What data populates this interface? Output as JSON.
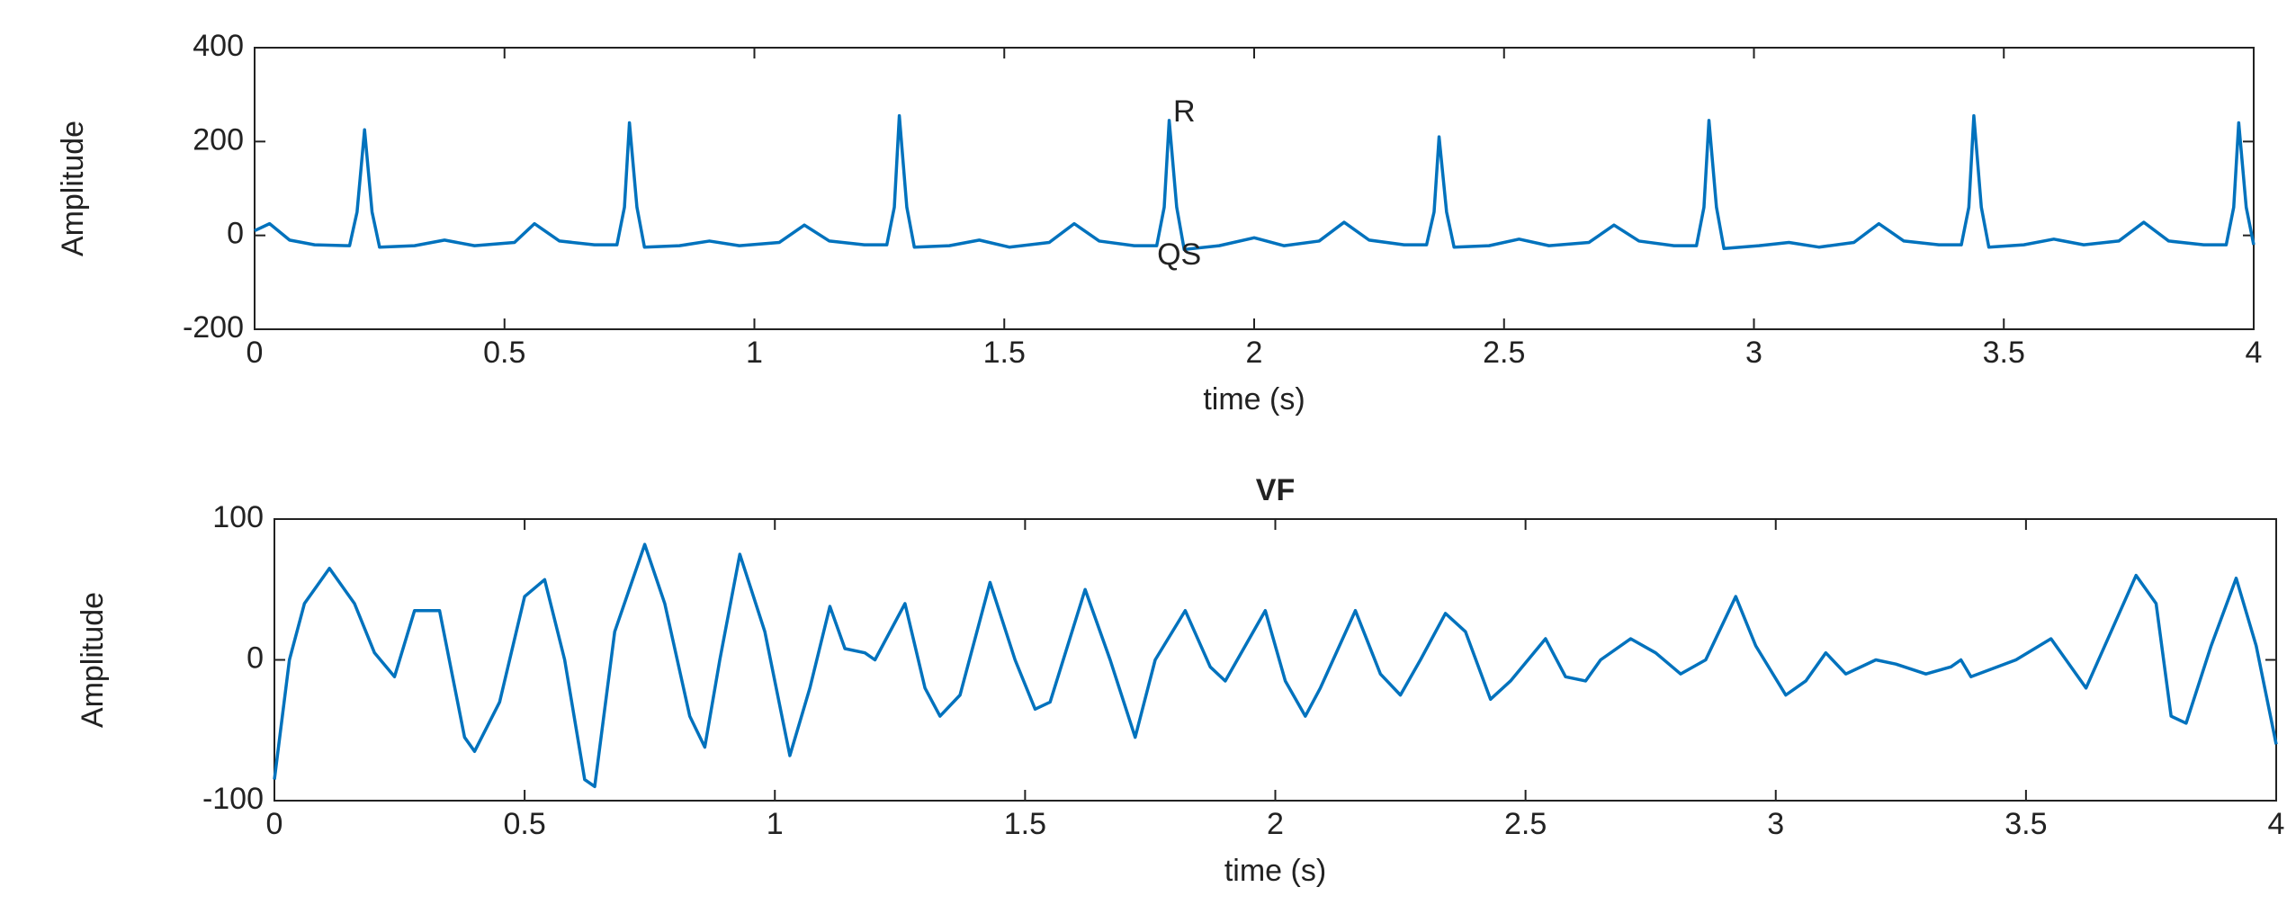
{
  "chart_data": [
    {
      "type": "line",
      "ylabel": "Amplitude",
      "xlabel": "time (s)",
      "xlim": [
        0,
        4
      ],
      "ylim": [
        -200,
        400
      ],
      "xticks": [
        0,
        0.5,
        1,
        1.5,
        2,
        2.5,
        3,
        3.5,
        4
      ],
      "yticks": [
        -200,
        0,
        200,
        400
      ],
      "grid": false,
      "annotations": [
        {
          "text": "R",
          "x": 1.86,
          "y": 260
        },
        {
          "text": "QS",
          "x": 1.85,
          "y": -45
        }
      ],
      "series": [
        {
          "color": "#0072bd",
          "x": [
            0,
            0.03,
            0.07,
            0.12,
            0.19,
            0.205,
            0.22,
            0.235,
            0.25,
            0.32,
            0.38,
            0.44,
            0.52,
            0.56,
            0.61,
            0.68,
            0.725,
            0.74,
            0.75,
            0.765,
            0.78,
            0.85,
            0.91,
            0.97,
            1.05,
            1.1,
            1.15,
            1.22,
            1.265,
            1.28,
            1.29,
            1.305,
            1.32,
            1.39,
            1.45,
            1.51,
            1.59,
            1.64,
            1.69,
            1.76,
            1.805,
            1.82,
            1.83,
            1.845,
            1.86,
            1.93,
            2.0,
            2.06,
            2.13,
            2.18,
            2.23,
            2.3,
            2.345,
            2.36,
            2.37,
            2.385,
            2.4,
            2.47,
            2.53,
            2.59,
            2.67,
            2.72,
            2.77,
            2.84,
            2.885,
            2.9,
            2.91,
            2.925,
            2.94,
            3.01,
            3.07,
            3.13,
            3.2,
            3.25,
            3.3,
            3.37,
            3.415,
            3.43,
            3.44,
            3.455,
            3.47,
            3.54,
            3.6,
            3.66,
            3.73,
            3.78,
            3.83,
            3.9,
            3.945,
            3.96,
            3.97,
            3.985,
            4.0
          ],
          "values": [
            10,
            25,
            -10,
            -20,
            -22,
            50,
            225,
            50,
            -25,
            -22,
            -10,
            -22,
            -15,
            25,
            -12,
            -20,
            -20,
            60,
            240,
            60,
            -25,
            -22,
            -12,
            -22,
            -15,
            22,
            -12,
            -20,
            -20,
            60,
            255,
            60,
            -25,
            -22,
            -10,
            -25,
            -15,
            25,
            -12,
            -22,
            -22,
            60,
            245,
            60,
            -30,
            -22,
            -5,
            -22,
            -12,
            28,
            -10,
            -20,
            -20,
            50,
            210,
            50,
            -25,
            -22,
            -8,
            -22,
            -15,
            22,
            -12,
            -22,
            -22,
            60,
            245,
            60,
            -28,
            -22,
            -15,
            -25,
            -15,
            25,
            -12,
            -20,
            -20,
            60,
            255,
            60,
            -25,
            -20,
            -8,
            -20,
            -12,
            28,
            -12,
            -20,
            -20,
            60,
            240,
            60,
            -20
          ]
        }
      ]
    },
    {
      "type": "line",
      "title": "VF",
      "ylabel": "Amplitude",
      "xlabel": "time (s)",
      "xlim": [
        0,
        4
      ],
      "ylim": [
        -100,
        100
      ],
      "xticks": [
        0,
        0.5,
        1,
        1.5,
        2,
        2.5,
        3,
        3.5,
        4
      ],
      "yticks": [
        -100,
        0,
        100
      ],
      "grid": false,
      "series": [
        {
          "color": "#0072bd",
          "x": [
            0,
            0.03,
            0.06,
            0.11,
            0.16,
            0.2,
            0.24,
            0.28,
            0.33,
            0.38,
            0.4,
            0.45,
            0.5,
            0.54,
            0.58,
            0.62,
            0.64,
            0.68,
            0.74,
            0.78,
            0.83,
            0.86,
            0.89,
            0.93,
            0.98,
            1.03,
            1.07,
            1.11,
            1.14,
            1.18,
            1.2,
            1.26,
            1.3,
            1.33,
            1.37,
            1.43,
            1.48,
            1.52,
            1.55,
            1.62,
            1.67,
            1.72,
            1.76,
            1.82,
            1.87,
            1.9,
            1.98,
            2.02,
            2.06,
            2.09,
            2.16,
            2.21,
            2.25,
            2.29,
            2.34,
            2.38,
            2.43,
            2.47,
            2.54,
            2.58,
            2.62,
            2.65,
            2.71,
            2.76,
            2.81,
            2.86,
            2.92,
            2.96,
            3.02,
            3.06,
            3.1,
            3.14,
            3.2,
            3.24,
            3.3,
            3.35,
            3.37,
            3.39,
            3.42,
            3.48,
            3.55,
            3.62,
            3.67,
            3.72,
            3.76,
            3.79,
            3.82,
            3.87,
            3.92,
            3.96,
            4.0
          ],
          "values": [
            -85,
            0,
            40,
            65,
            40,
            5,
            -12,
            35,
            35,
            -55,
            -65,
            -30,
            45,
            57,
            0,
            -85,
            -90,
            20,
            82,
            40,
            -40,
            -62,
            0,
            75,
            20,
            -68,
            -20,
            38,
            8,
            5,
            0,
            40,
            -20,
            -40,
            -25,
            55,
            0,
            -35,
            -30,
            50,
            0,
            -55,
            0,
            35,
            -5,
            -15,
            35,
            -15,
            -40,
            -20,
            35,
            -10,
            -25,
            0,
            33,
            20,
            -28,
            -15,
            15,
            -12,
            -15,
            0,
            15,
            5,
            -10,
            0,
            45,
            10,
            -25,
            -15,
            5,
            -10,
            0,
            -3,
            -10,
            -5,
            0,
            -12,
            -8,
            0,
            15,
            -20,
            20,
            60,
            40,
            -40,
            -45,
            10,
            58,
            10,
            -60
          ]
        }
      ]
    }
  ]
}
